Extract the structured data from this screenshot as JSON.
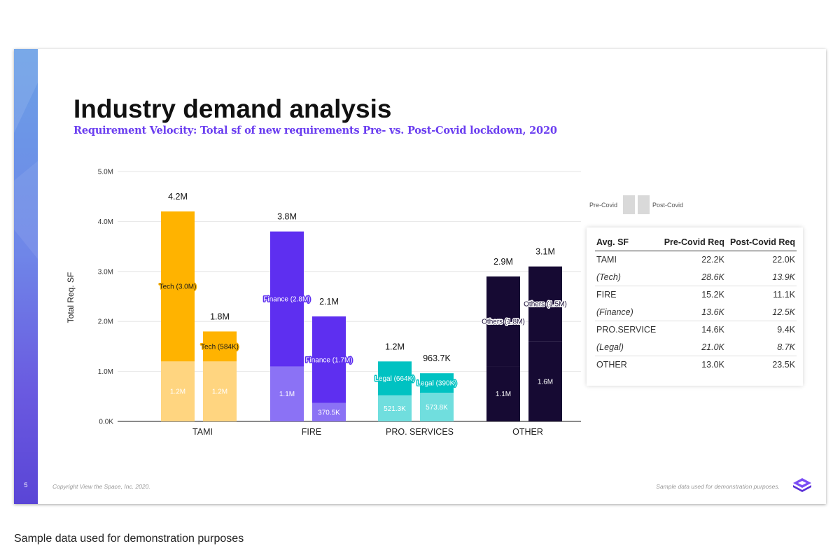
{
  "slide": {
    "title": "Industry demand analysis",
    "subtitle": "Requirement Velocity: Total sf of new requirements Pre- vs. Post-Covid lockdown, 2020",
    "page_number": "5",
    "copyright": "Copyright View the Space, Inc. 2020.",
    "sample_note": "Sample data used for demonstration purposes.",
    "logo_icon": "viewthespace-logo-icon"
  },
  "caption": "Sample data used for demonstration purposes",
  "legend": {
    "pre_label": "Pre-Covid",
    "post_label": "Post-Covid"
  },
  "colors": {
    "TAMI": {
      "dark": "#FFB300",
      "light": "#FFD580"
    },
    "FIRE": {
      "dark": "#5E2FF0",
      "light": "#8B72F5"
    },
    "PRO. SERVICES": {
      "dark": "#00C2C2",
      "light": "#70DEDE"
    },
    "OTHER": {
      "dark": "#160A33",
      "light": "#160A33"
    },
    "accent": "#6a3df0"
  },
  "table": {
    "headers": [
      "Avg. SF",
      "Pre-Covid Req",
      "Post-Covid Req"
    ],
    "rows": [
      {
        "label": "TAMI",
        "pre": "22.2K",
        "post": "22.0K",
        "sub": false
      },
      {
        "label": "(Tech)",
        "pre": "28.6K",
        "post": "13.9K",
        "sub": true
      },
      {
        "label": "FIRE",
        "pre": "15.2K",
        "post": "11.1K",
        "sub": false
      },
      {
        "label": "(Finance)",
        "pre": "13.6K",
        "post": "12.5K",
        "sub": true
      },
      {
        "label": "PRO.SERVICE",
        "pre": "14.6K",
        "post": "9.4K",
        "sub": false
      },
      {
        "label": "(Legal)",
        "pre": "21.0K",
        "post": "8.7K",
        "sub": true
      },
      {
        "label": "OTHER",
        "pre": "13.0K",
        "post": "23.5K",
        "sub": false
      }
    ]
  },
  "chart_data": {
    "type": "bar",
    "stacked": true,
    "ylabel": "Total Req. SF",
    "ylim": [
      0,
      5000000
    ],
    "yticks": [
      "0.0K",
      "1.0M",
      "2.0M",
      "3.0M",
      "4.0M",
      "5.0M"
    ],
    "categories": [
      "TAMI",
      "FIRE",
      "PRO.  SERVICES",
      "OTHER"
    ],
    "bars": [
      {
        "category": "TAMI",
        "period": "Pre-Covid",
        "total": 4200000,
        "total_label": "4.2M",
        "top_value": 3000000,
        "top_label": "Tech (3.0M)",
        "bottom_value": 1200000,
        "bottom_label": "1.2M"
      },
      {
        "category": "TAMI",
        "period": "Post-Covid",
        "total": 1800000,
        "total_label": "1.8M",
        "top_value": 584000,
        "top_label": "Tech (584K)",
        "bottom_value": 1200000,
        "bottom_label": "1.2M"
      },
      {
        "category": "FIRE",
        "period": "Pre-Covid",
        "total": 3800000,
        "total_label": "3.8M",
        "top_value": 2800000,
        "top_label": "Finance (2.8M)",
        "bottom_value": 1100000,
        "bottom_label": "1.1M"
      },
      {
        "category": "FIRE",
        "period": "Post-Covid",
        "total": 2100000,
        "total_label": "2.1M",
        "top_value": 1700000,
        "top_label": "Finance (1.7M)",
        "bottom_value": 370500,
        "bottom_label": "370.5K"
      },
      {
        "category": "PRO. SERVICES",
        "period": "Pre-Covid",
        "total": 1200000,
        "total_label": "1.2M",
        "top_value": 664000,
        "top_label": "Legal (664K)",
        "bottom_value": 521300,
        "bottom_label": "521.3K"
      },
      {
        "category": "PRO. SERVICES",
        "period": "Post-Covid",
        "total": 963700,
        "total_label": "963.7K",
        "top_value": 390000,
        "top_label": "Legal (390K)",
        "bottom_value": 573800,
        "bottom_label": "573.8K"
      },
      {
        "category": "OTHER",
        "period": "Pre-Covid",
        "total": 2900000,
        "total_label": "2.9M",
        "top_value": 1800000,
        "top_label": "Others (1.8M)",
        "bottom_value": 1100000,
        "bottom_label": "1.1M"
      },
      {
        "category": "OTHER",
        "period": "Post-Covid",
        "total": 3100000,
        "total_label": "3.1M",
        "top_value": 1500000,
        "top_label": "Others (1.5M)",
        "bottom_value": 1600000,
        "bottom_label": "1.6M"
      }
    ]
  }
}
